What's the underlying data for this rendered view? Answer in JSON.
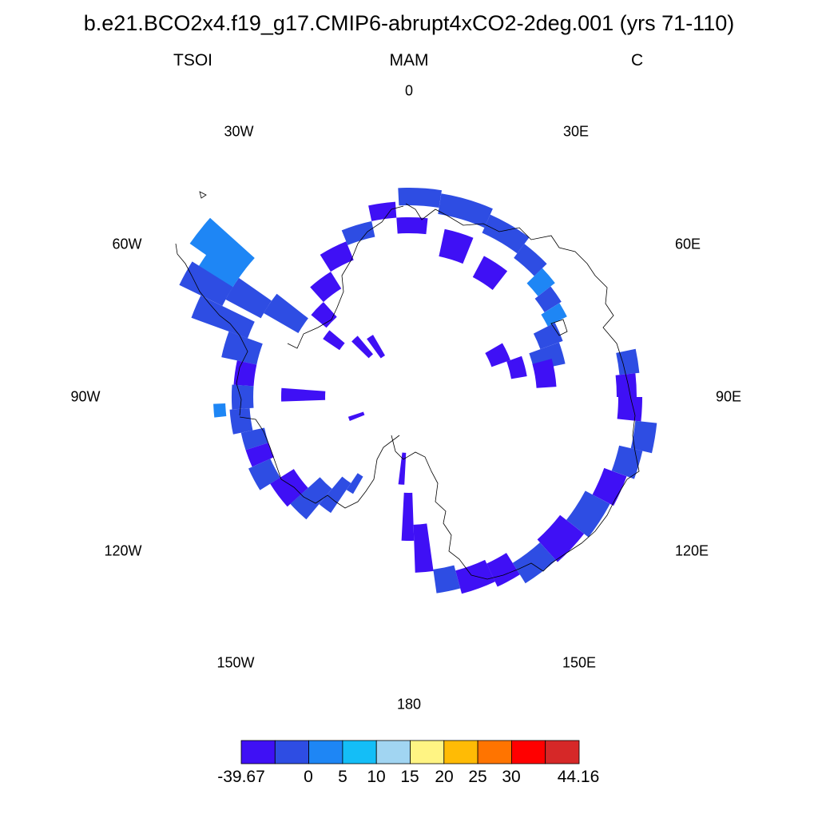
{
  "title": "b.e21.BCO2x4.f19_g17.CMIP6-abrupt4xCO2-2deg.001 (yrs 71-110)",
  "subtitle_left": "TSOI",
  "subtitle_center": "MAM",
  "subtitle_right": "C",
  "longitude_labels": [
    "0",
    "30E",
    "60E",
    "90E",
    "120E",
    "150E",
    "180",
    "150W",
    "120W",
    "90W",
    "60W",
    "30W"
  ],
  "colorbar": {
    "labels": [
      "-39.67",
      "0",
      "5",
      "10",
      "15",
      "20",
      "25",
      "30",
      "44.16"
    ],
    "colors": [
      "#3f10f5",
      "#2e4de3",
      "#1e86f5",
      "#14bef7",
      "#a1d5f2",
      "#fff483",
      "#ffbb05",
      "#ff7400",
      "#ff0000",
      "#d62828"
    ]
  },
  "map_colors": {
    "cold": "#3f10f5",
    "mid": "#2e4de3",
    "light": "#1e86f5",
    "coast": "#000000"
  }
}
